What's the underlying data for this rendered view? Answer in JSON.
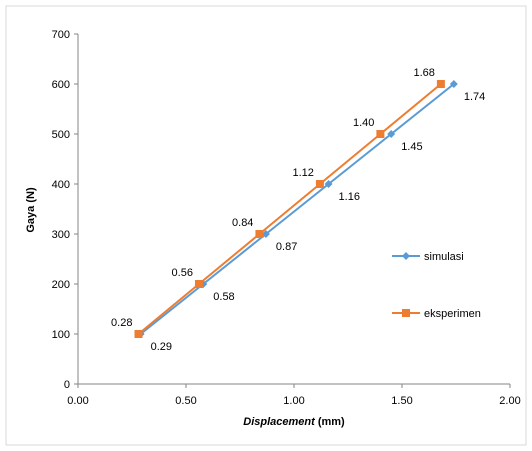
{
  "chart_data": {
    "type": "line",
    "title": "",
    "xlabel_italic": "Displacement",
    "xlabel_unit": " (mm)",
    "ylabel": "Gaya (N)",
    "xlim": [
      0,
      2
    ],
    "ylim": [
      0,
      700
    ],
    "x_ticks": [
      "0.00",
      "0.50",
      "1.00",
      "1.50",
      "2.00"
    ],
    "y_ticks": [
      "0",
      "100",
      "200",
      "300",
      "400",
      "500",
      "600",
      "700"
    ],
    "grid": false,
    "legend_position": "right",
    "series": [
      {
        "name": "simulasi",
        "color": "#5b9bd5",
        "marker": "diamond",
        "x": [
          0.29,
          0.58,
          0.87,
          1.16,
          1.45,
          1.74
        ],
        "y": [
          100,
          200,
          300,
          400,
          500,
          600
        ],
        "labels": [
          "0.29",
          "0.58",
          "0.87",
          "1.16",
          "1.45",
          "1.74"
        ],
        "label_side": "below-right"
      },
      {
        "name": "eksperimen",
        "color": "#ed7d31",
        "marker": "square",
        "x": [
          0.28,
          0.56,
          0.84,
          1.12,
          1.4,
          1.68
        ],
        "y": [
          100,
          200,
          300,
          400,
          500,
          600
        ],
        "labels": [
          "0.28",
          "0.56",
          "0.84",
          "1.12",
          "1.40",
          "1.68"
        ],
        "label_side": "above-left"
      }
    ]
  }
}
